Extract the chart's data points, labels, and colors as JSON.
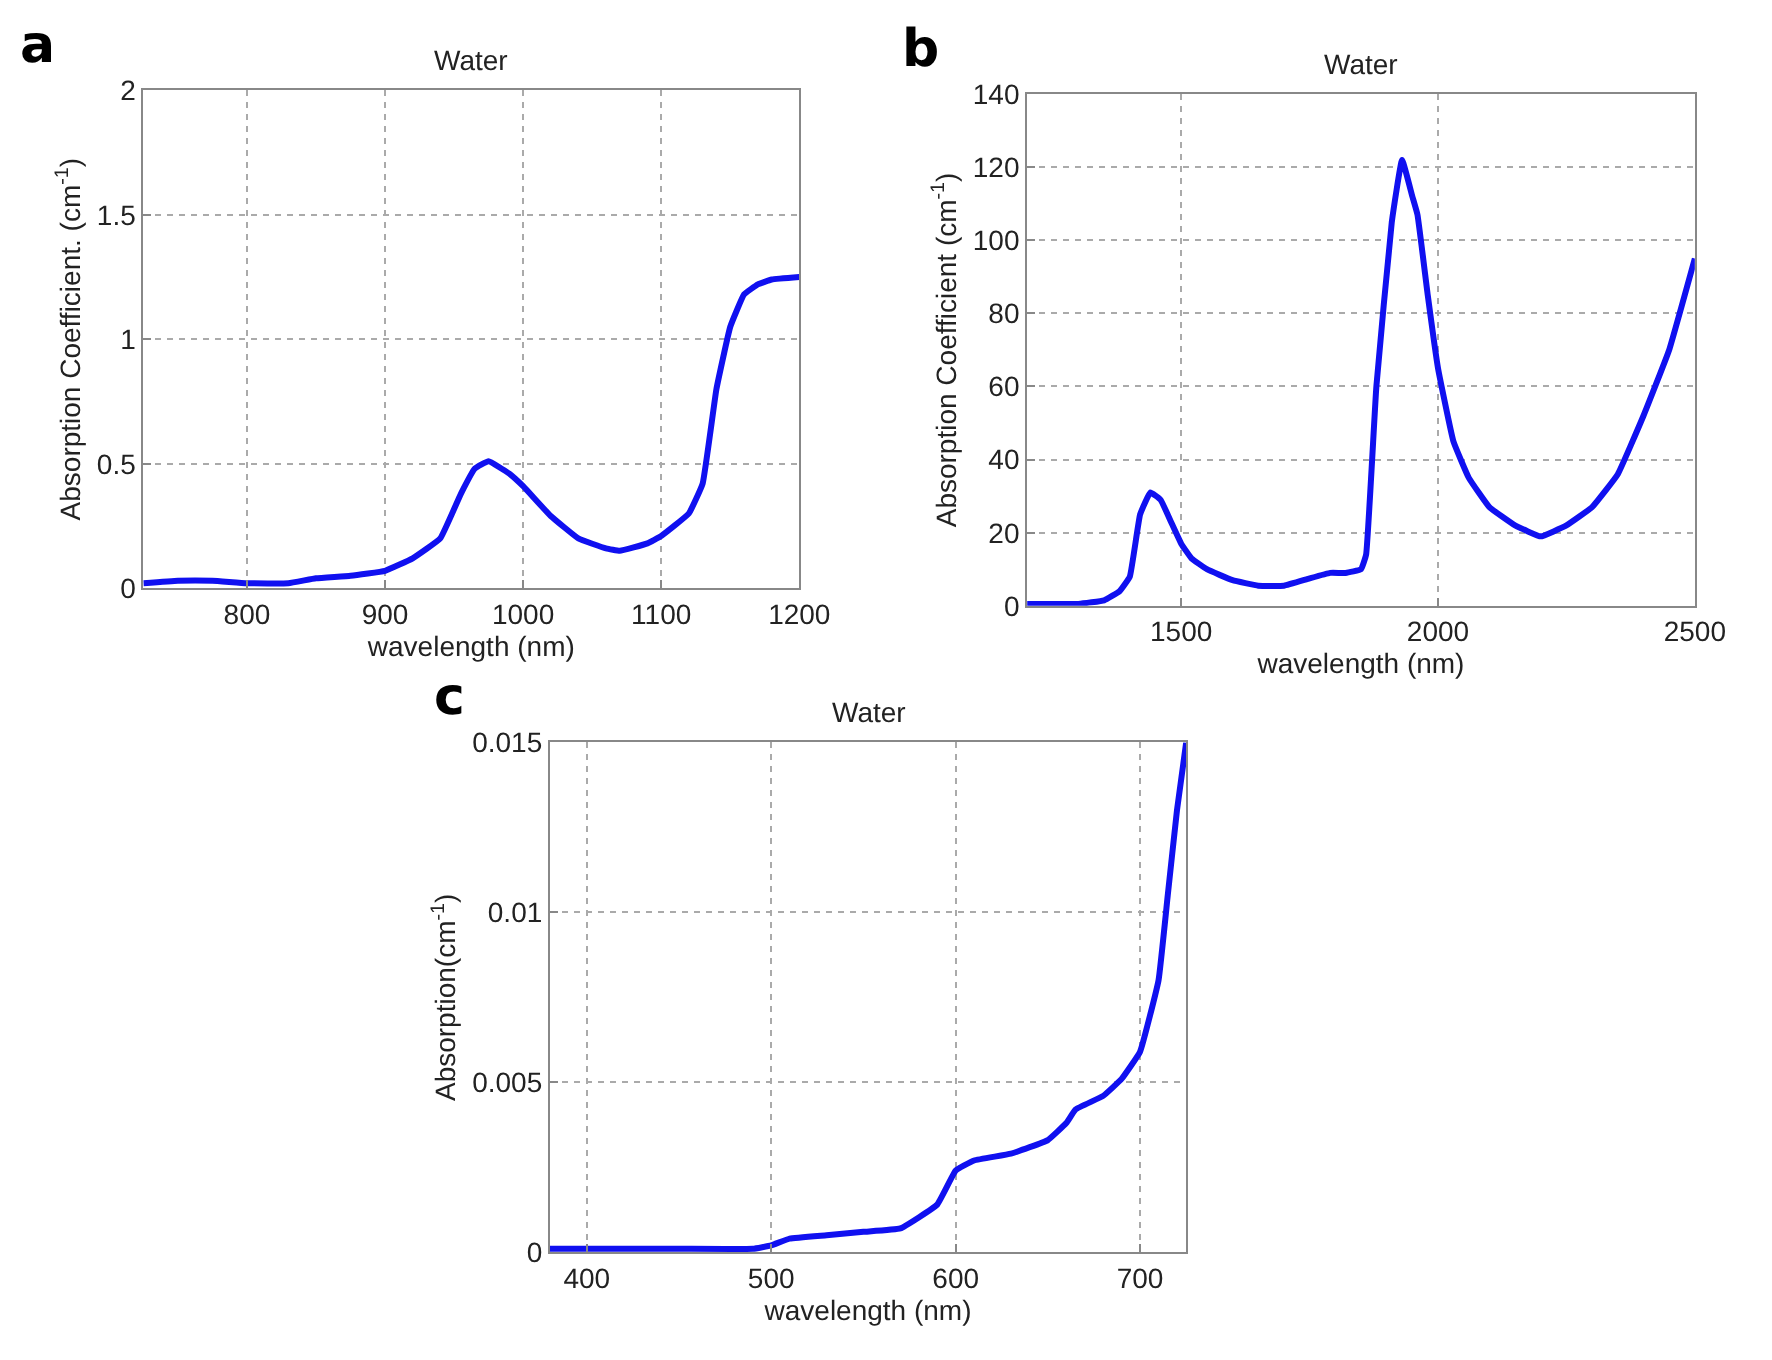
{
  "chart_data": [
    {
      "type": "line",
      "title": "Water",
      "xlabel": "wavelength (nm)",
      "ylabel": "Absorption Coefficient. (cm$^{-1}$)",
      "annotations": [
        "a"
      ],
      "grid": true,
      "marker": "none",
      "line_style": "solid",
      "xlim": [
        725,
        1200
      ],
      "xticks": [
        800,
        900,
        1000,
        1100,
        1200
      ],
      "ylim": [
        0,
        2
      ],
      "yticks": [
        0,
        0.5,
        1,
        1.5,
        2
      ],
      "series": [
        {
          "color": "#1010f0",
          "x": [
            725,
            750,
            775,
            800,
            830,
            850,
            875,
            900,
            920,
            940,
            955,
            965,
            975,
            990,
            1000,
            1020,
            1040,
            1060,
            1070,
            1090,
            1100,
            1120,
            1130,
            1140,
            1150,
            1160,
            1170,
            1180,
            1200
          ],
          "values": [
            0.02,
            0.03,
            0.03,
            0.02,
            0.02,
            0.04,
            0.05,
            0.07,
            0.12,
            0.2,
            0.38,
            0.48,
            0.51,
            0.46,
            0.41,
            0.29,
            0.2,
            0.16,
            0.15,
            0.18,
            0.21,
            0.3,
            0.42,
            0.8,
            1.05,
            1.18,
            1.22,
            1.24,
            1.25
          ]
        }
      ]
    },
    {
      "type": "line",
      "title": "Water",
      "xlabel": "wavelength (nm)",
      "ylabel": "Absorption Coefficient (cm$^{-1}$)",
      "annotations": [
        "b"
      ],
      "grid": true,
      "marker": "none",
      "line_style": "solid",
      "xlim": [
        1200,
        2500
      ],
      "xticks": [
        1500,
        2000,
        2500
      ],
      "ylim": [
        0,
        140
      ],
      "yticks": [
        0,
        20,
        40,
        60,
        80,
        100,
        120,
        140
      ],
      "series": [
        {
          "color": "#1010f0",
          "x": [
            1200,
            1300,
            1350,
            1380,
            1400,
            1420,
            1440,
            1460,
            1480,
            1500,
            1520,
            1550,
            1600,
            1650,
            1700,
            1750,
            1790,
            1820,
            1850,
            1860,
            1880,
            1910,
            1930,
            1950,
            1960,
            1980,
            2000,
            2030,
            2060,
            2100,
            2150,
            2200,
            2250,
            2300,
            2350,
            2400,
            2450,
            2500
          ],
          "values": [
            0.5,
            0.5,
            1.5,
            4,
            8,
            25,
            31,
            29,
            23,
            17,
            13,
            10,
            7,
            5.5,
            5.5,
            7.5,
            9,
            9,
            10,
            14,
            60,
            105,
            122,
            112,
            107,
            85,
            65,
            45,
            35,
            27,
            22,
            19,
            22,
            27,
            36,
            52,
            70,
            95
          ]
        }
      ]
    },
    {
      "type": "line",
      "title": "Water",
      "xlabel": "wavelength (nm)",
      "ylabel": "Absorption(cm$^{-1}$)",
      "annotations": [
        "c"
      ],
      "grid": true,
      "marker": "none",
      "line_style": "solid",
      "xlim": [
        380,
        725
      ],
      "xticks": [
        400,
        500,
        600,
        700
      ],
      "ylim": [
        0,
        0.015
      ],
      "yticks": [
        0,
        0.005,
        0.01,
        0.015
      ],
      "series": [
        {
          "color": "#1010f0",
          "x": [
            380,
            400,
            450,
            490,
            500,
            510,
            530,
            550,
            570,
            590,
            600,
            610,
            630,
            650,
            660,
            665,
            680,
            690,
            700,
            710,
            715,
            720,
            725
          ],
          "values": [
            0.0001,
            0.0001,
            0.0001,
            0.0001,
            0.0002,
            0.0004,
            0.0005,
            0.0006,
            0.0007,
            0.0014,
            0.0024,
            0.0027,
            0.0029,
            0.0033,
            0.0038,
            0.0042,
            0.0046,
            0.0051,
            0.0059,
            0.008,
            0.0105,
            0.013,
            0.015
          ]
        }
      ]
    }
  ]
}
